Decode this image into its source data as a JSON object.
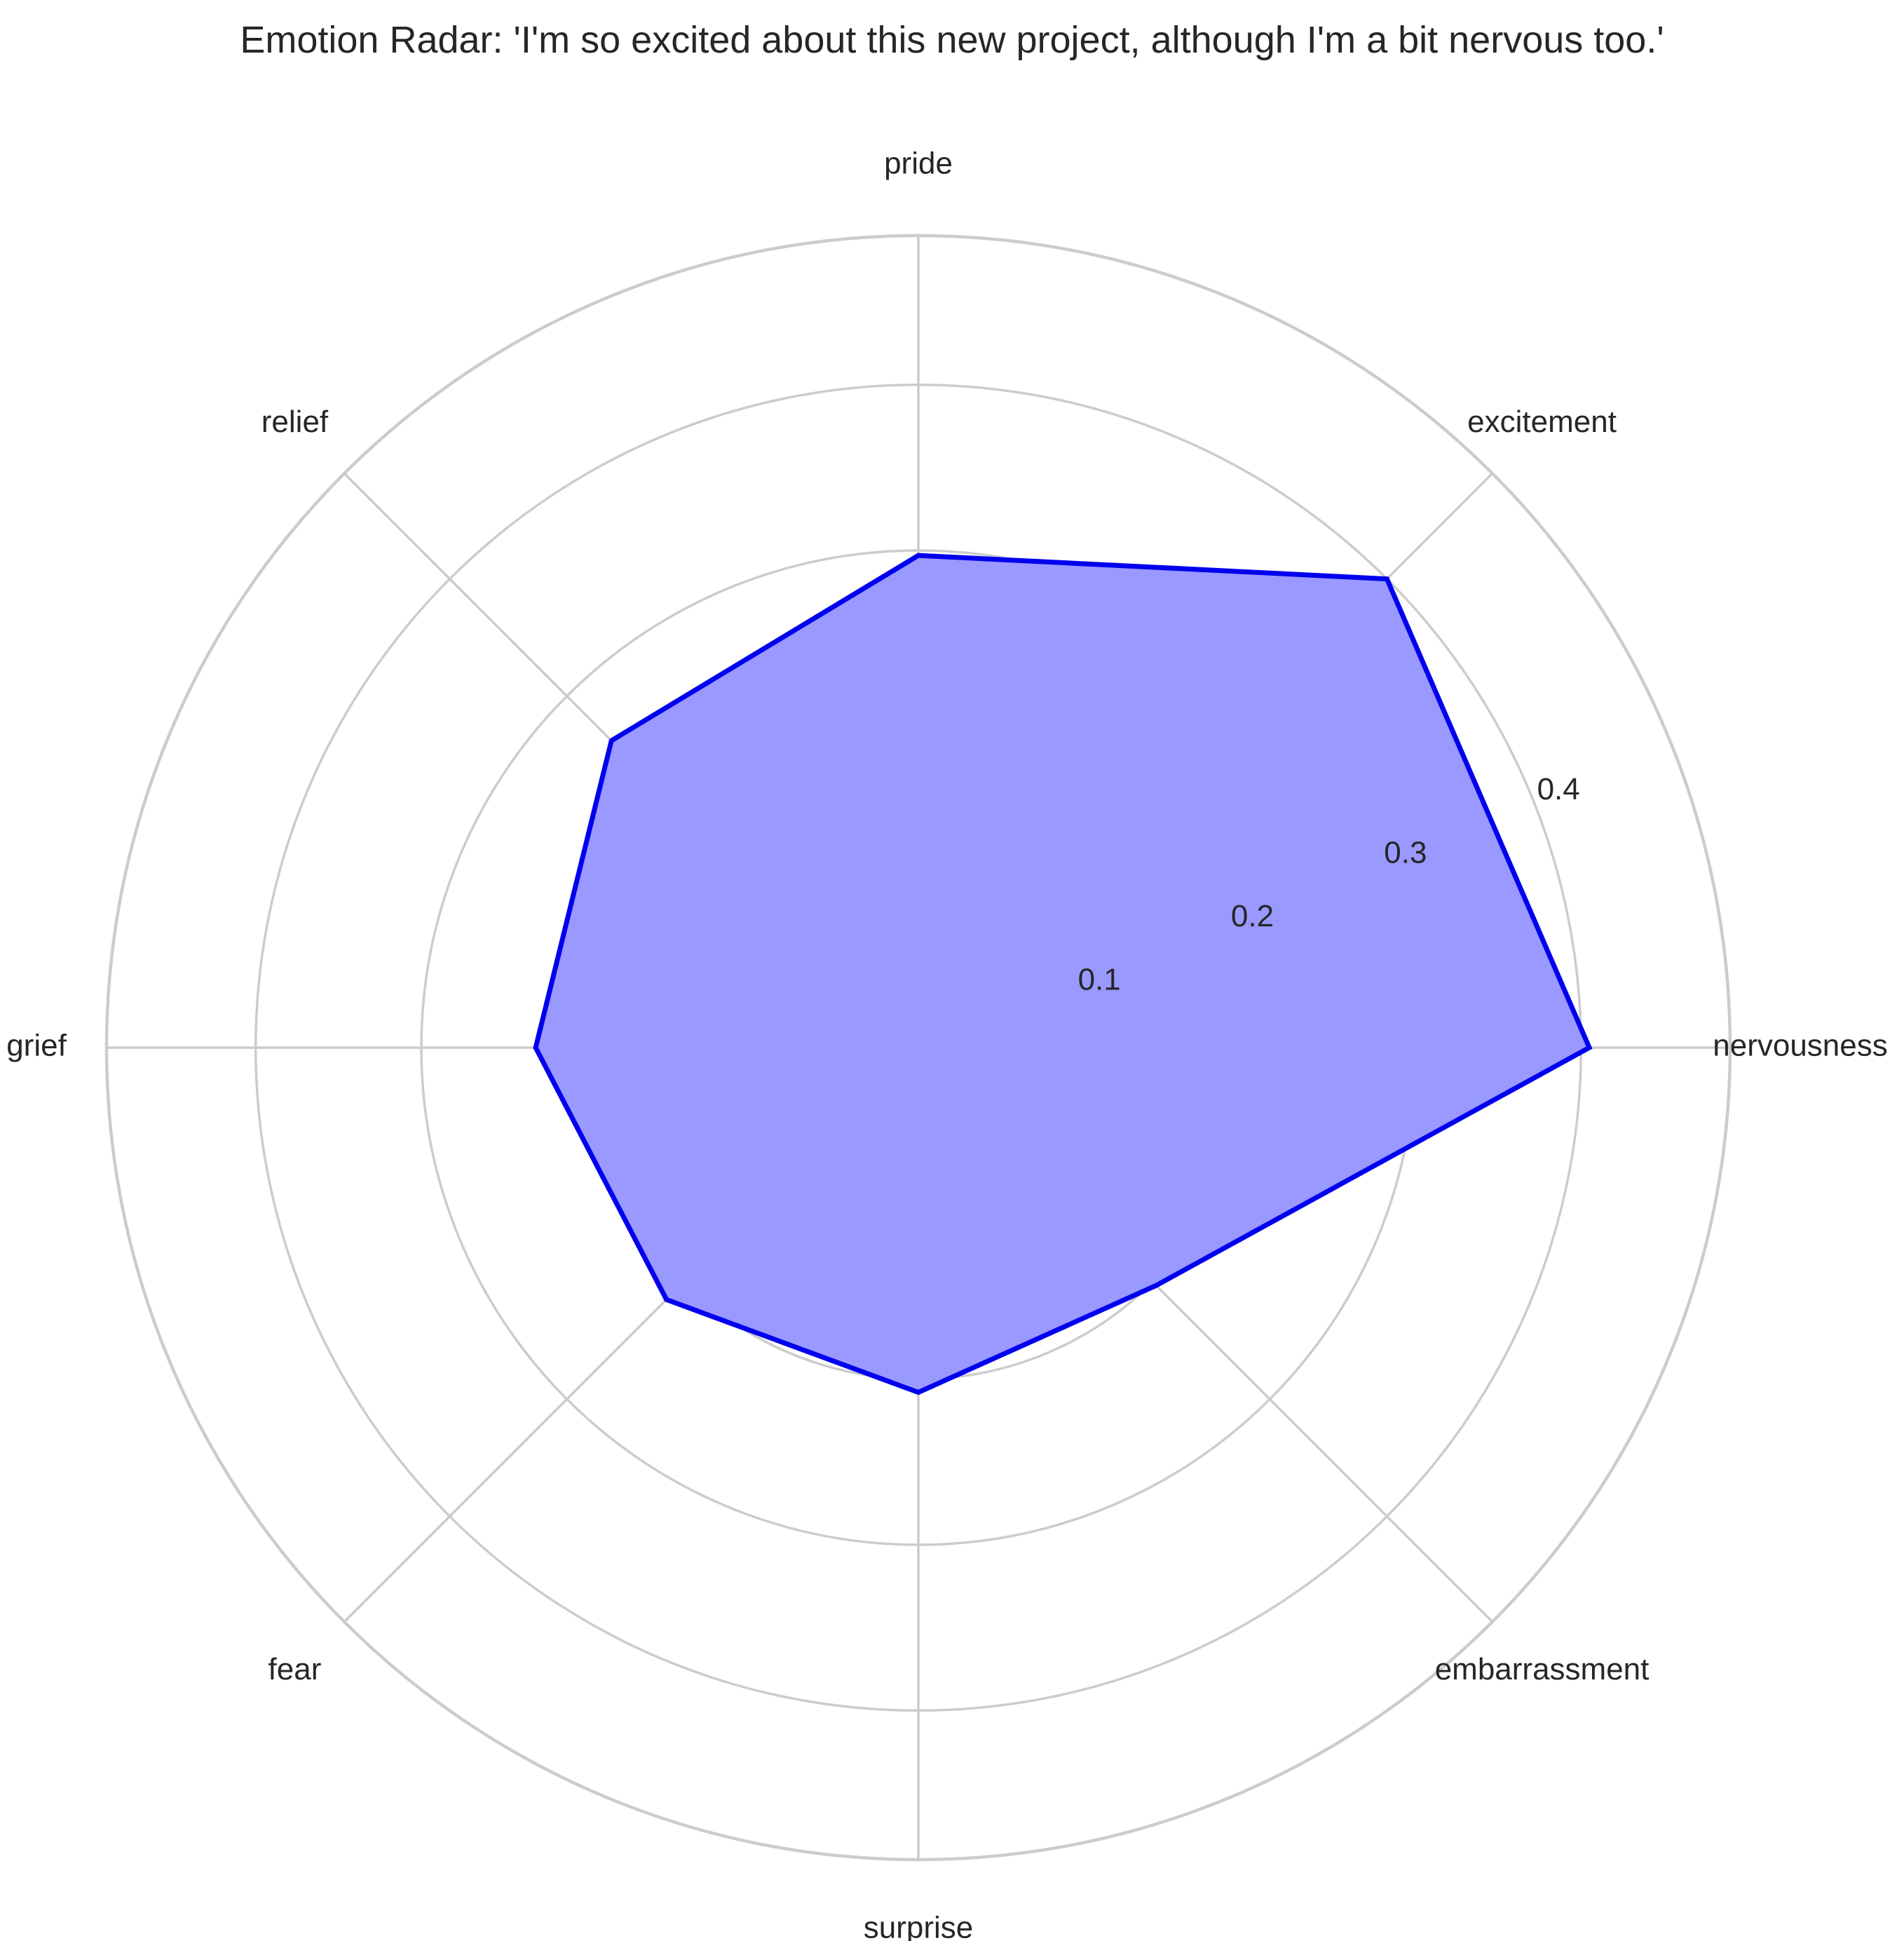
{
  "chart_data": {
    "type": "radar",
    "title": "Emotion Radar: 'I'm so excited about this new project, although I'm a bit nervous too.'",
    "categories": [
      "nervousness",
      "excitement",
      "pride",
      "relief",
      "grief",
      "fear",
      "surprise",
      "embarrassment"
    ],
    "series": [
      {
        "values": [
          0.405,
          0.4,
          0.297,
          0.262,
          0.231,
          0.215,
          0.208,
          0.203
        ],
        "line_color": "#0000ee",
        "fill_color": "#9999ff"
      }
    ],
    "rlim": [
      0,
      0.49
    ],
    "rticks": [
      0.1,
      0.2,
      0.3,
      0.4
    ],
    "rtick_labels": [
      "0.1",
      "0.2",
      "0.3",
      "0.4"
    ],
    "grid": true,
    "start_angle": "east",
    "direction": "counter-clockwise"
  }
}
